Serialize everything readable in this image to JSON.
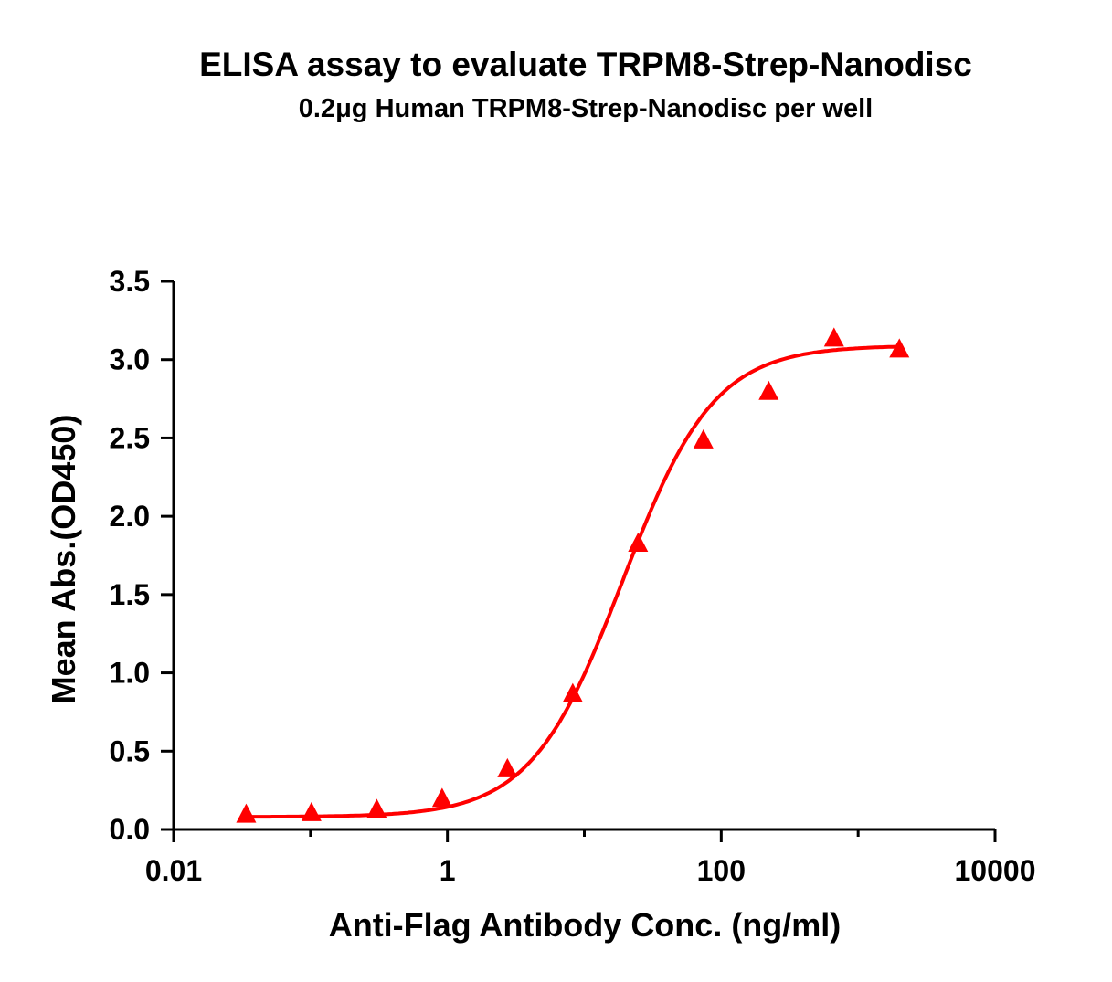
{
  "chart_data": {
    "type": "scatter",
    "title": "ELISA assay to evaluate TRPM8-Strep-Nanodisc",
    "subtitle": "0.2μg Human TRPM8-Strep-Nanodisc per well",
    "xlabel": "Anti-Flag Antibody Conc. (ng/ml)",
    "ylabel": "Mean Abs.(OD450)",
    "xscale": "log",
    "xlim": [
      0.01,
      10000
    ],
    "ylim": [
      0,
      3.5
    ],
    "xticks": [
      "0.01",
      "1",
      "100",
      "10000"
    ],
    "yticks": [
      "0.0",
      "0.5",
      "1.0",
      "1.5",
      "2.0",
      "2.5",
      "3.0",
      "3.5"
    ],
    "grid": false,
    "marker": "triangle",
    "color": "#ff0000",
    "fit_curve": "sigmoidal",
    "x": [
      0.0339,
      0.1016,
      0.3048,
      0.9145,
      2.743,
      8.23,
      24.69,
      74.07,
      222.2,
      666.7,
      2000
    ],
    "y": [
      0.09,
      0.1,
      0.12,
      0.19,
      0.38,
      0.86,
      1.82,
      2.48,
      2.79,
      3.13,
      3.06
    ]
  }
}
